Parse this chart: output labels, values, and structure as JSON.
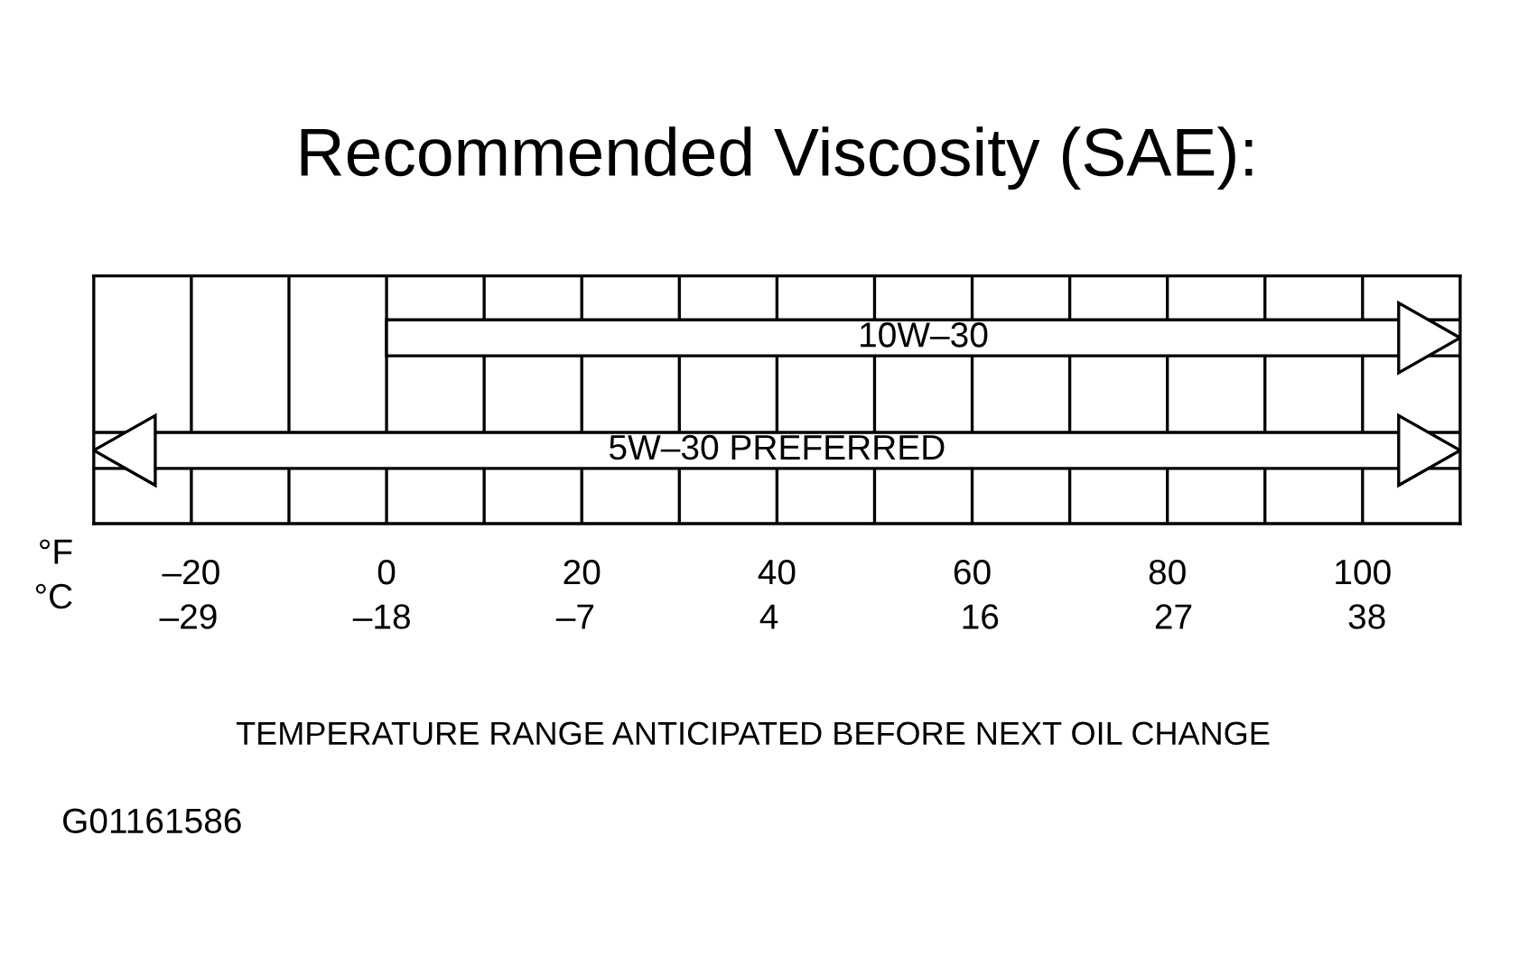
{
  "chart_data": {
    "type": "bar",
    "orientation": "horizontal",
    "title": "Recommended Viscosity (SAE):",
    "categories": [
      "10W–30",
      "5W–30 PREFERRED"
    ],
    "series": [
      {
        "color": "#ffffff",
        "values": [
          110,
          140
        ],
        "base": [
          0,
          -30
        ]
      }
    ],
    "xlim": [
      -30,
      110
    ],
    "xticks": [
      {
        "value": -20,
        "label": "–20"
      },
      {
        "value": -10,
        "label": null
      },
      0,
      {
        "value": 10,
        "label": null
      },
      20,
      {
        "value": 30,
        "label": null
      },
      40,
      {
        "value": 50,
        "label": null
      },
      60,
      {
        "value": 70,
        "label": null
      },
      80,
      {
        "value": 90,
        "label": null
      },
      100
    ],
    "xlabel": "°F",
    "x2ticks": [
      {
        "value": -29,
        "label": "–29"
      },
      {
        "value": -18,
        "label": "–18"
      },
      {
        "value": -7,
        "label": "–7"
      },
      4,
      16,
      27,
      38
    ],
    "x2lim": [
      -34.4,
      43.3
    ],
    "x2label": "°C",
    "tick_labels": "x",
    "grid": "x",
    "annotations": [
      "TEMPERATURE RANGE ANTICIPATED BEFORE NEXT OIL CHANGE",
      "G01161586"
    ]
  }
}
